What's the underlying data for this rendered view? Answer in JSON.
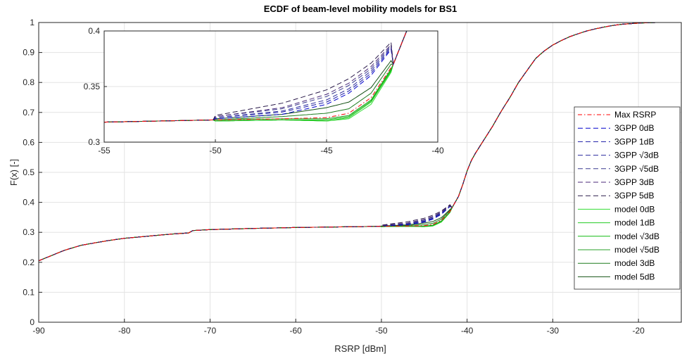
{
  "chart_data": [
    {
      "type": "line",
      "title": "ECDF of beam-level mobility models for BS1",
      "xlabel": "RSRP [dBm]",
      "ylabel": "F(x) [-]",
      "xlim": [
        -90,
        -15
      ],
      "ylim": [
        0,
        1
      ],
      "xticks": [
        "-90",
        "-80",
        "-70",
        "-60",
        "-50",
        "-40",
        "-30",
        "-20"
      ],
      "yticks": [
        "0",
        "0.1",
        "0.2",
        "0.3",
        "0.4",
        "0.5",
        "0.6",
        "0.7",
        "0.8",
        "0.9",
        "1"
      ],
      "grid": true,
      "legend_position": "right",
      "base_curve": {
        "x": [
          -90,
          -87,
          -85,
          -82,
          -80,
          -75,
          -72.5,
          -72,
          -70,
          -65,
          -60,
          -55,
          -50,
          -47,
          -45,
          -44,
          -43,
          -42,
          -41,
          -40.5,
          -40,
          -39.5,
          -39,
          -38,
          -37,
          -36,
          -35,
          -34,
          -33,
          -32,
          -31,
          -30,
          -29,
          -28,
          -27,
          -26,
          -25,
          -24,
          -23,
          -22,
          -21,
          -20,
          -19,
          -18,
          -17,
          -16,
          -15
        ],
        "y": [
          0.205,
          0.24,
          0.257,
          0.272,
          0.28,
          0.293,
          0.298,
          0.306,
          0.309,
          0.313,
          0.316,
          0.318,
          0.32,
          0.321,
          0.322,
          0.326,
          0.34,
          0.37,
          0.42,
          0.46,
          0.505,
          0.54,
          0.565,
          0.61,
          0.655,
          0.705,
          0.75,
          0.8,
          0.84,
          0.88,
          0.905,
          0.925,
          0.94,
          0.953,
          0.963,
          0.972,
          0.979,
          0.985,
          0.99,
          0.994,
          0.996,
          0.998,
          0.999,
          1.0,
          1.0,
          1.0,
          1.0
        ]
      },
      "series": [
        {
          "name": "Max RSRP",
          "color": "#ff0000",
          "dash": "dashdot",
          "offset": [
            0,
            0,
            0,
            0,
            0,
            0
          ]
        },
        {
          "name": "3GPP 0dB",
          "color": "#0000cc",
          "dash": "dashed",
          "offset": [
            0.001,
            0.004,
            0.012,
            0.018,
            0.02,
            0.016
          ]
        },
        {
          "name": "3GPP 1dB",
          "color": "#1a1aa6",
          "dash": "dashed",
          "offset": [
            0.002,
            0.006,
            0.014,
            0.02,
            0.022,
            0.017
          ]
        },
        {
          "name": "3GPP √3dB",
          "color": "#2b2b9e",
          "dash": "dashed",
          "offset": [
            0.002,
            0.007,
            0.016,
            0.022,
            0.024,
            0.018
          ]
        },
        {
          "name": "3GPP √5dB",
          "color": "#3a3a8f",
          "dash": "dashed",
          "offset": [
            0.003,
            0.009,
            0.019,
            0.025,
            0.026,
            0.019
          ]
        },
        {
          "name": "3GPP 3dB",
          "color": "#4b2a7a",
          "dash": "dashed",
          "offset": [
            0.003,
            0.01,
            0.021,
            0.027,
            0.028,
            0.02
          ]
        },
        {
          "name": "3GPP 5dB",
          "color": "#2a1a4a",
          "dash": "dashed",
          "offset": [
            0.004,
            0.014,
            0.025,
            0.031,
            0.031,
            0.022
          ]
        },
        {
          "name": "model 0dB",
          "color": "#33dd33",
          "dash": "solid",
          "offset": [
            -0.001,
            -0.001,
            -0.003,
            -0.005,
            -0.006,
            -0.004
          ]
        },
        {
          "name": "model 1dB",
          "color": "#22cc22",
          "dash": "solid",
          "offset": [
            -0.001,
            -0.001,
            -0.003,
            -0.004,
            -0.004,
            -0.003
          ]
        },
        {
          "name": "model √3dB",
          "color": "#11bb11",
          "dash": "solid",
          "offset": [
            -0.001,
            -0.001,
            -0.002,
            -0.003,
            -0.003,
            -0.002
          ]
        },
        {
          "name": "model √5dB",
          "color": "#2aa02a",
          "dash": "solid",
          "offset": [
            0,
            0,
            -0.001,
            -0.002,
            -0.002,
            -0.001
          ]
        },
        {
          "name": "model 3dB",
          "color": "#1e7d1e",
          "dash": "solid",
          "offset": [
            0,
            0.002,
            0.004,
            0.004,
            0.004,
            0.003
          ]
        },
        {
          "name": "model 5dB",
          "color": "#145214",
          "dash": "solid",
          "offset": [
            0.001,
            0.004,
            0.009,
            0.01,
            0.009,
            0.006
          ]
        }
      ],
      "offset_x": [
        -50,
        -47,
        -45,
        -44,
        -43,
        -42
      ]
    },
    {
      "type": "line",
      "role": "inset",
      "xlim": [
        -55,
        -40
      ],
      "ylim": [
        0.3,
        0.4
      ],
      "xticks": [
        "-55",
        "-50",
        "-45",
        "-40"
      ],
      "yticks": [
        "0.3",
        "0.35",
        "0.4"
      ],
      "grid": true
    }
  ]
}
